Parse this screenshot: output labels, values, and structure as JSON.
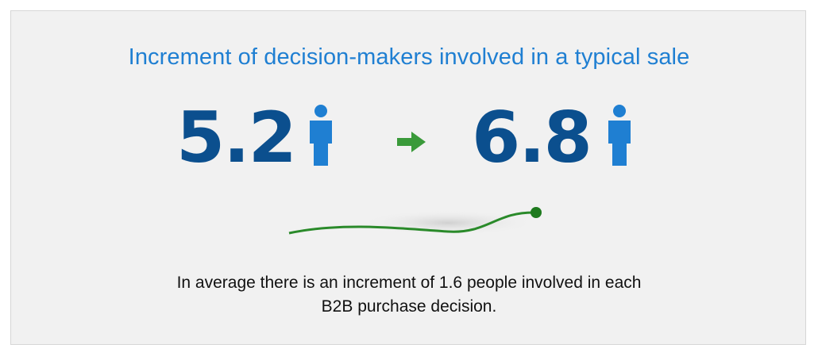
{
  "title": "Increment of decision-makers involved in a typical sale",
  "stats": {
    "before": "5.2",
    "after": "6.8"
  },
  "icons": {
    "person": "person-icon",
    "arrow": "arrow-right-icon"
  },
  "note": {
    "line1": "In average there is an increment of 1.6 people involved in each",
    "line2": "B2B purchase decision."
  },
  "colors": {
    "title": "#1f7fd2",
    "stat": "#0b4f8e",
    "person": "#1f7fd2",
    "arrow": "#3a9a3a",
    "curve": "#2a8a2a"
  }
}
